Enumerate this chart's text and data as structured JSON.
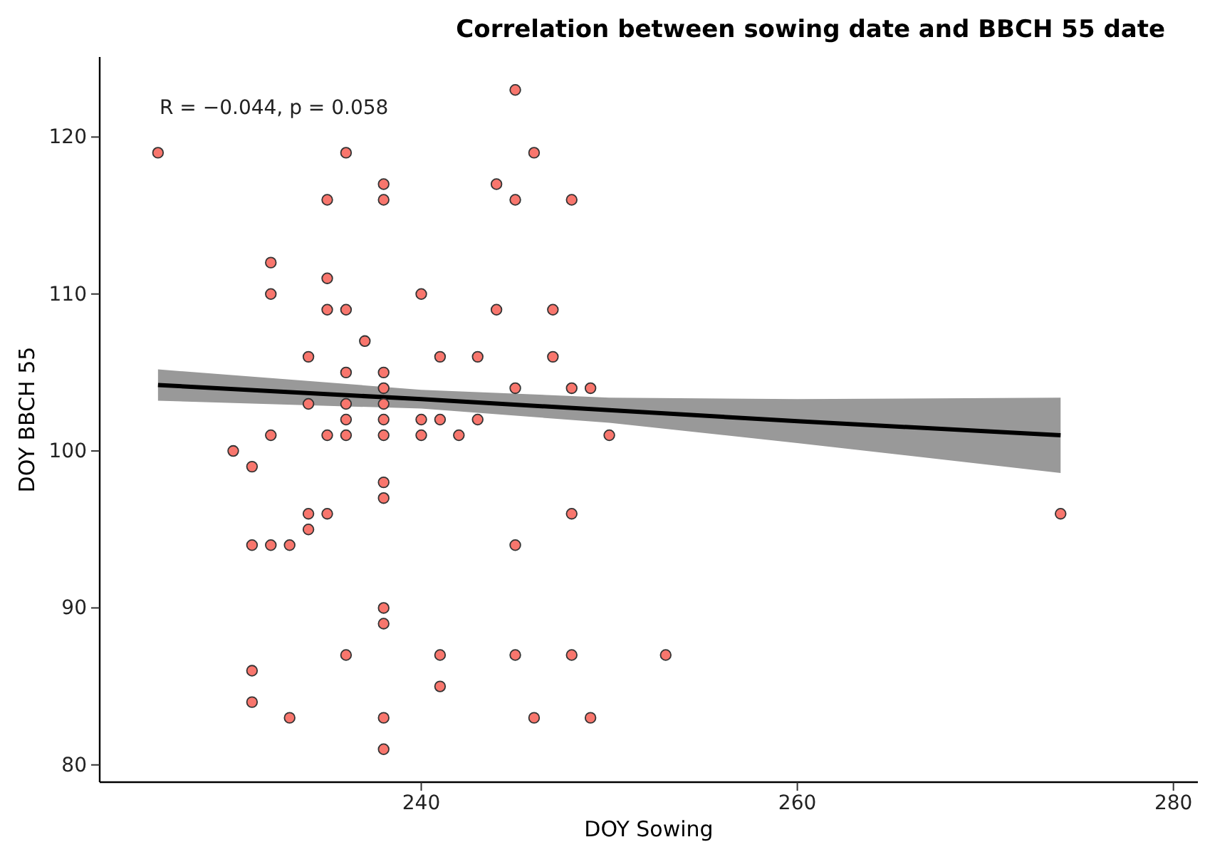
{
  "chart_data": {
    "type": "scatter",
    "title": "Correlation between sowing date and BBCH 55 date",
    "xlabel": "DOY Sowing",
    "ylabel": "DOY BBCH 55",
    "annotations": [
      "R = −0.044, p = 0.058"
    ],
    "xlim": [
      222.9,
      281.3
    ],
    "xticks": [
      240,
      260,
      280
    ],
    "ylim": [
      78.9,
      125.1
    ],
    "yticks": [
      80,
      90,
      100,
      110,
      120
    ],
    "grid": false,
    "series": [
      {
        "marker": "circle",
        "color": "#f8766d",
        "x": [
          226,
          230,
          231,
          231,
          231,
          231,
          232,
          232,
          232,
          232,
          233,
          233,
          234,
          234,
          234,
          234,
          235,
          235,
          235,
          235,
          235,
          236,
          236,
          236,
          236,
          236,
          236,
          236,
          237,
          238,
          238,
          238,
          238,
          238,
          238,
          238,
          238,
          238,
          238,
          238,
          238,
          238,
          240,
          240,
          240,
          241,
          241,
          241,
          241,
          242,
          243,
          243,
          244,
          244,
          245,
          245,
          245,
          245,
          245,
          246,
          246,
          247,
          247,
          248,
          248,
          248,
          248,
          249,
          249,
          250,
          253,
          274
        ],
        "values": [
          119,
          100,
          99,
          94,
          86,
          84,
          112,
          110,
          101,
          94,
          94,
          83,
          106,
          103,
          96,
          95,
          116,
          111,
          109,
          101,
          96,
          119,
          109,
          105,
          103,
          102,
          101,
          87,
          107,
          117,
          116,
          105,
          104,
          103,
          102,
          101,
          98,
          97,
          90,
          89,
          83,
          81,
          110,
          102,
          101,
          106,
          102,
          87,
          85,
          101,
          106,
          102,
          117,
          109,
          123,
          116,
          104,
          94,
          87,
          119,
          83,
          109,
          106,
          116,
          104,
          96,
          87,
          104,
          83,
          101,
          87,
          96
        ]
      },
      {
        "type": "line",
        "color": "#000000",
        "line_style": "solid",
        "x": [
          226,
          240,
          250,
          260,
          274
        ],
        "values": [
          104.2,
          103.3,
          102.6,
          101.9,
          101.0
        ],
        "lower": [
          103.2,
          102.7,
          101.8,
          100.5,
          98.6
        ],
        "upper": [
          105.2,
          103.9,
          103.4,
          103.3,
          103.4
        ]
      }
    ]
  }
}
